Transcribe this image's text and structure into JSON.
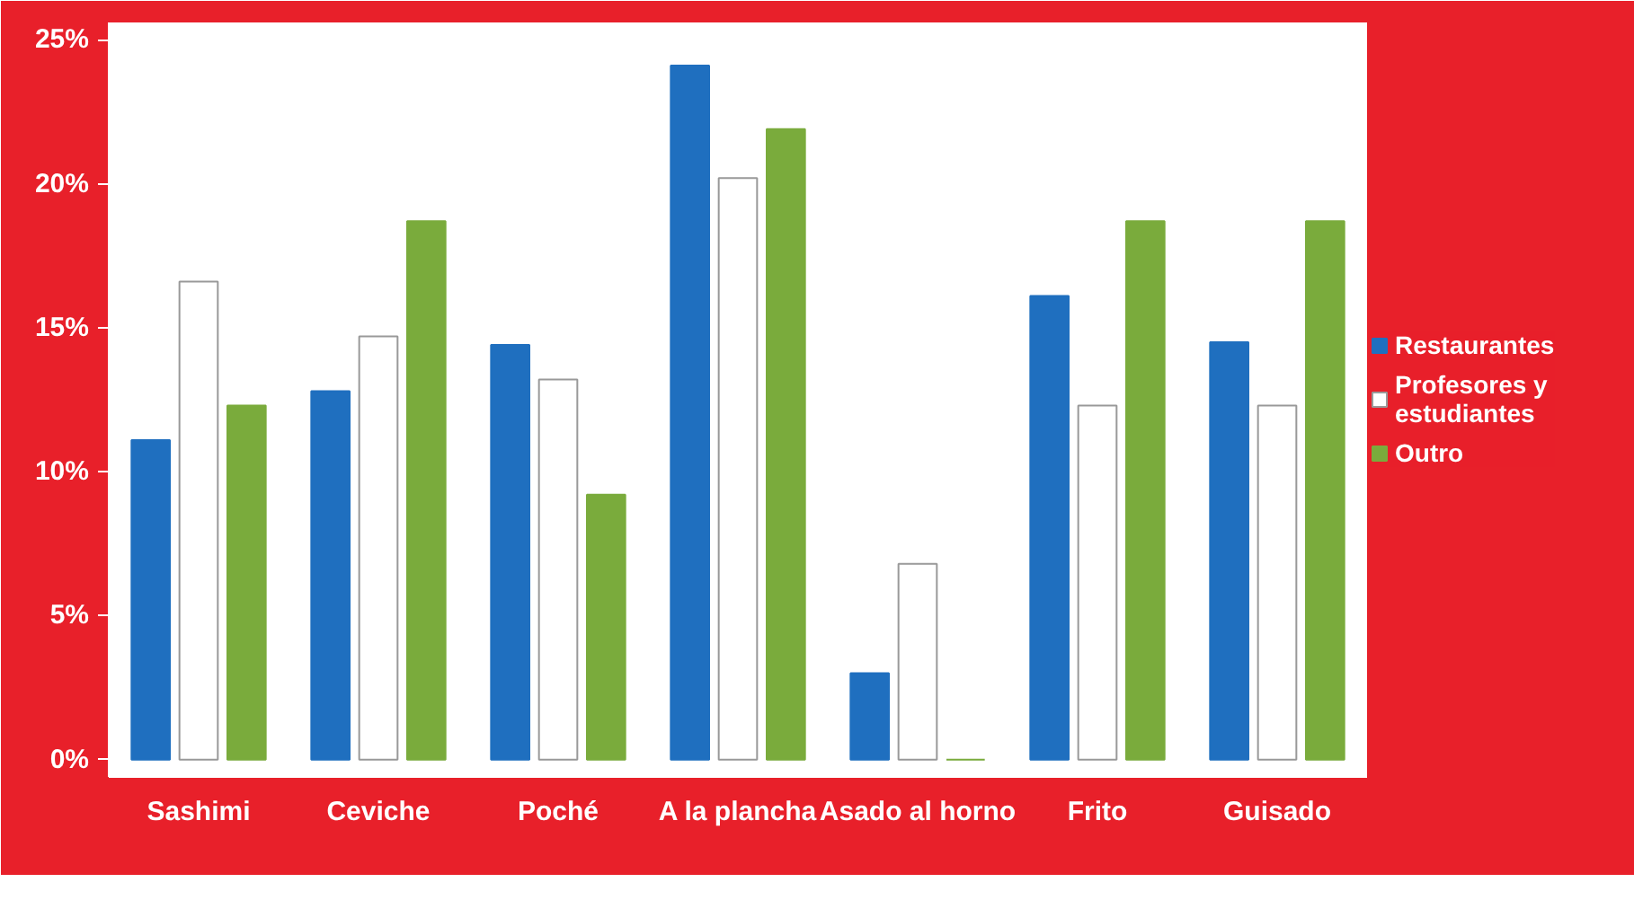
{
  "chart_data": {
    "type": "bar",
    "categories": [
      "Sashimi",
      "Ceviche",
      "Poché",
      "A la plancha",
      "Asado al horno",
      "Frito",
      "Guisado"
    ],
    "series": [
      {
        "name": "Restaurantes",
        "color": "#1f6fbf",
        "values": [
          11.1,
          12.8,
          14.4,
          24.1,
          3.0,
          16.1,
          14.5
        ]
      },
      {
        "name": "Profesores y estudiantes",
        "color": "#ffffff",
        "values": [
          16.6,
          14.7,
          13.2,
          20.2,
          6.8,
          12.3,
          12.3
        ]
      },
      {
        "name": "Outro",
        "color": "#7aab3c",
        "values": [
          12.3,
          18.7,
          9.2,
          21.9,
          0,
          18.7,
          18.7
        ]
      }
    ],
    "ylim": [
      -0.6,
      25.6
    ],
    "yticks": [
      {
        "value": 0,
        "label": "0%"
      },
      {
        "value": 5,
        "label": "5%"
      },
      {
        "value": 10,
        "label": "10%"
      },
      {
        "value": 15,
        "label": "15%"
      },
      {
        "value": 20,
        "label": "20%"
      },
      {
        "value": 25,
        "label": "25%"
      }
    ],
    "grid": false,
    "legend": "right"
  }
}
